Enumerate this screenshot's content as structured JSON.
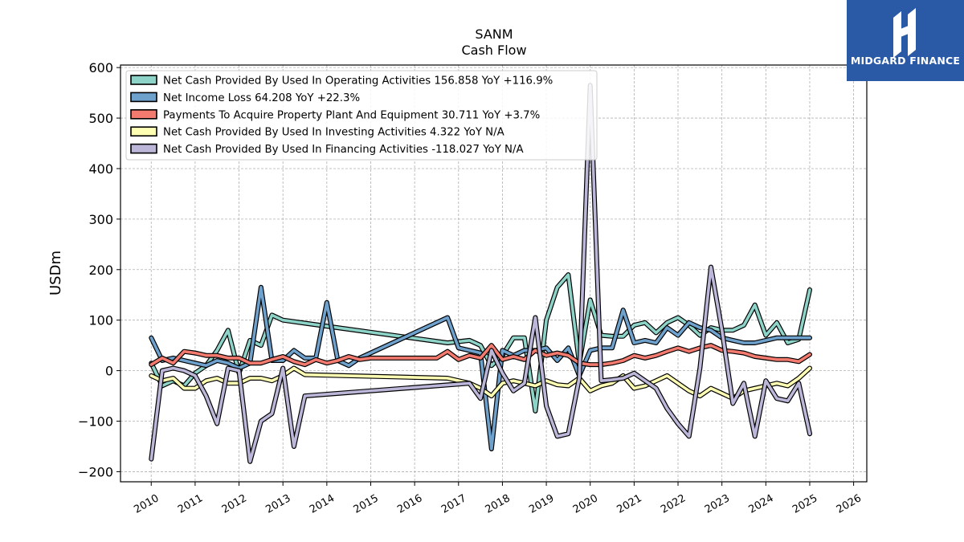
{
  "header": {
    "ticker": "SANM",
    "subtitle": "Cash Flow"
  },
  "branding": {
    "name": "MIDGARD FINANCE",
    "bg_color": "#2a5aa6"
  },
  "chart_data": {
    "type": "line",
    "ylabel": "USDm",
    "xlim": [
      2009.3,
      2026.3
    ],
    "ylim": [
      -220,
      605
    ],
    "yticks": [
      600,
      500,
      400,
      300,
      200,
      100,
      0,
      -100,
      -200
    ],
    "ytick_labels": [
      "600",
      "500",
      "400",
      "300",
      "200",
      "100",
      "0",
      "−100",
      "−200"
    ],
    "xticks": [
      2010,
      2011,
      2012,
      2013,
      2014,
      2015,
      2016,
      2017,
      2018,
      2019,
      2020,
      2021,
      2022,
      2023,
      2024,
      2025,
      2026
    ],
    "grid": true,
    "legend_position": "top-left",
    "series": [
      {
        "name": "Net Cash Provided By Used In Operating Activities",
        "legend": "Net Cash Provided By Used In Operating Activities  156.858 YoY +116.9%",
        "color": "#8dd3c7",
        "points": [
          [
            2010.0,
            15
          ],
          [
            2010.25,
            -30
          ],
          [
            2010.5,
            -20
          ],
          [
            2010.75,
            -30
          ],
          [
            2011.0,
            -5
          ],
          [
            2011.25,
            10
          ],
          [
            2011.5,
            40
          ],
          [
            2011.75,
            80
          ],
          [
            2012.0,
            -5
          ],
          [
            2012.25,
            60
          ],
          [
            2012.5,
            50
          ],
          [
            2012.75,
            110
          ],
          [
            2013.0,
            100
          ],
          [
            2016.75,
            55
          ],
          [
            2017.25,
            60
          ],
          [
            2017.5,
            50
          ],
          [
            2017.75,
            10
          ],
          [
            2018.0,
            30
          ],
          [
            2018.25,
            65
          ],
          [
            2018.5,
            65
          ],
          [
            2018.75,
            -80
          ],
          [
            2019.0,
            100
          ],
          [
            2019.25,
            165
          ],
          [
            2019.5,
            190
          ],
          [
            2019.75,
            15
          ],
          [
            2020.0,
            140
          ],
          [
            2020.25,
            70
          ],
          [
            2020.5,
            68
          ],
          [
            2020.75,
            68
          ],
          [
            2021.0,
            90
          ],
          [
            2021.25,
            95
          ],
          [
            2021.5,
            75
          ],
          [
            2021.75,
            95
          ],
          [
            2022.0,
            105
          ],
          [
            2022.25,
            90
          ],
          [
            2022.5,
            70
          ],
          [
            2022.75,
            85
          ],
          [
            2023.0,
            80
          ],
          [
            2023.25,
            80
          ],
          [
            2023.5,
            90
          ],
          [
            2023.75,
            130
          ],
          [
            2024.0,
            70
          ],
          [
            2024.25,
            95
          ],
          [
            2024.5,
            55
          ],
          [
            2024.75,
            62
          ],
          [
            2025.0,
            160
          ]
        ]
      },
      {
        "name": "Net Income Loss",
        "legend": "Net Income Loss  64.208 YoY +22.3%",
        "color": "#6fa1cd",
        "points": [
          [
            2010.0,
            65
          ],
          [
            2010.25,
            20
          ],
          [
            2010.5,
            25
          ],
          [
            2010.75,
            20
          ],
          [
            2011.0,
            15
          ],
          [
            2011.25,
            10
          ],
          [
            2011.5,
            20
          ],
          [
            2011.75,
            15
          ],
          [
            2012.0,
            5
          ],
          [
            2012.25,
            15
          ],
          [
            2012.5,
            165
          ],
          [
            2012.75,
            20
          ],
          [
            2013.0,
            20
          ],
          [
            2013.25,
            40
          ],
          [
            2013.5,
            25
          ],
          [
            2013.75,
            25
          ],
          [
            2014.0,
            135
          ],
          [
            2014.25,
            20
          ],
          [
            2014.5,
            10
          ],
          [
            2014.75,
            25
          ],
          [
            2016.75,
            105
          ],
          [
            2017.0,
            45
          ],
          [
            2017.5,
            35
          ],
          [
            2017.75,
            -155
          ],
          [
            2018.0,
            40
          ],
          [
            2018.25,
            30
          ],
          [
            2018.5,
            40
          ],
          [
            2018.75,
            40
          ],
          [
            2019.0,
            45
          ],
          [
            2019.25,
            20
          ],
          [
            2019.5,
            45
          ],
          [
            2019.75,
            -10
          ],
          [
            2020.0,
            40
          ],
          [
            2020.25,
            45
          ],
          [
            2020.5,
            45
          ],
          [
            2020.75,
            120
          ],
          [
            2021.0,
            55
          ],
          [
            2021.25,
            60
          ],
          [
            2021.5,
            55
          ],
          [
            2021.75,
            85
          ],
          [
            2022.0,
            70
          ],
          [
            2022.25,
            95
          ],
          [
            2022.5,
            85
          ],
          [
            2022.75,
            80
          ],
          [
            2023.0,
            65
          ],
          [
            2023.25,
            60
          ],
          [
            2023.5,
            55
          ],
          [
            2023.75,
            55
          ],
          [
            2024.0,
            60
          ],
          [
            2024.25,
            65
          ],
          [
            2024.5,
            65
          ],
          [
            2024.75,
            65
          ],
          [
            2025.0,
            65
          ]
        ]
      },
      {
        "name": "Payments To Acquire Property Plant And Equipment",
        "legend": "Payments To Acquire Property Plant And Equipment  30.711 YoY +3.7%",
        "color": "#f27a6e",
        "points": [
          [
            2010.0,
            12
          ],
          [
            2010.25,
            25
          ],
          [
            2010.5,
            15
          ],
          [
            2010.75,
            38
          ],
          [
            2011.0,
            35
          ],
          [
            2011.25,
            30
          ],
          [
            2011.5,
            30
          ],
          [
            2011.75,
            25
          ],
          [
            2012.0,
            25
          ],
          [
            2012.25,
            15
          ],
          [
            2012.5,
            15
          ],
          [
            2012.75,
            22
          ],
          [
            2013.0,
            28
          ],
          [
            2013.25,
            18
          ],
          [
            2013.5,
            12
          ],
          [
            2013.75,
            22
          ],
          [
            2014.0,
            15
          ],
          [
            2014.25,
            20
          ],
          [
            2014.5,
            28
          ],
          [
            2014.75,
            22
          ],
          [
            2015.0,
            25
          ],
          [
            2016.5,
            25
          ],
          [
            2016.75,
            38
          ],
          [
            2017.0,
            22
          ],
          [
            2017.25,
            30
          ],
          [
            2017.5,
            25
          ],
          [
            2017.75,
            50
          ],
          [
            2018.0,
            22
          ],
          [
            2018.25,
            28
          ],
          [
            2018.5,
            22
          ],
          [
            2018.75,
            40
          ],
          [
            2019.0,
            30
          ],
          [
            2019.25,
            35
          ],
          [
            2019.5,
            30
          ],
          [
            2019.75,
            15
          ],
          [
            2020.0,
            12
          ],
          [
            2020.25,
            12
          ],
          [
            2020.5,
            15
          ],
          [
            2020.75,
            20
          ],
          [
            2021.0,
            30
          ],
          [
            2021.25,
            25
          ],
          [
            2021.5,
            30
          ],
          [
            2021.75,
            38
          ],
          [
            2022.0,
            45
          ],
          [
            2022.25,
            38
          ],
          [
            2022.5,
            45
          ],
          [
            2022.75,
            50
          ],
          [
            2023.0,
            40
          ],
          [
            2023.25,
            38
          ],
          [
            2023.5,
            35
          ],
          [
            2023.75,
            28
          ],
          [
            2024.0,
            25
          ],
          [
            2024.25,
            22
          ],
          [
            2024.5,
            22
          ],
          [
            2024.75,
            18
          ],
          [
            2025.0,
            32
          ]
        ]
      },
      {
        "name": "Net Cash Provided By Used In Investing Activities",
        "legend": "Net Cash Provided By Used In Investing Activities  4.322 YoY N/A",
        "color": "#ffffb3",
        "points": [
          [
            2010.0,
            -10
          ],
          [
            2010.25,
            -20
          ],
          [
            2010.5,
            -15
          ],
          [
            2010.75,
            -35
          ],
          [
            2011.0,
            -35
          ],
          [
            2011.25,
            -20
          ],
          [
            2011.5,
            -15
          ],
          [
            2011.75,
            -25
          ],
          [
            2012.0,
            -25
          ],
          [
            2012.25,
            -15
          ],
          [
            2012.5,
            -15
          ],
          [
            2012.75,
            -20
          ],
          [
            2013.0,
            -10
          ],
          [
            2013.25,
            5
          ],
          [
            2013.5,
            -8
          ],
          [
            2016.75,
            -15
          ],
          [
            2017.25,
            -25
          ],
          [
            2017.5,
            -35
          ],
          [
            2017.75,
            -50
          ],
          [
            2018.0,
            -25
          ],
          [
            2018.25,
            -20
          ],
          [
            2018.5,
            -25
          ],
          [
            2018.75,
            -30
          ],
          [
            2019.0,
            -20
          ],
          [
            2019.25,
            -28
          ],
          [
            2019.5,
            -30
          ],
          [
            2019.75,
            -15
          ],
          [
            2020.0,
            -40
          ],
          [
            2020.25,
            -30
          ],
          [
            2020.5,
            -25
          ],
          [
            2020.75,
            -10
          ],
          [
            2021.0,
            -35
          ],
          [
            2021.25,
            -30
          ],
          [
            2021.5,
            -20
          ],
          [
            2021.75,
            -10
          ],
          [
            2022.0,
            -25
          ],
          [
            2022.25,
            -40
          ],
          [
            2022.5,
            -50
          ],
          [
            2022.75,
            -35
          ],
          [
            2023.0,
            -45
          ],
          [
            2023.25,
            -55
          ],
          [
            2023.5,
            -40
          ],
          [
            2023.75,
            -35
          ],
          [
            2024.0,
            -30
          ],
          [
            2024.25,
            -25
          ],
          [
            2024.5,
            -30
          ],
          [
            2024.75,
            -15
          ],
          [
            2025.0,
            5
          ]
        ]
      },
      {
        "name": "Net Cash Provided By Used In Financing Activities",
        "legend": "Net Cash Provided By Used In Financing Activities  -118.027 YoY N/A",
        "color": "#bcb7d8",
        "points": [
          [
            2010.0,
            -175
          ],
          [
            2010.25,
            0
          ],
          [
            2010.5,
            5
          ],
          [
            2010.75,
            0
          ],
          [
            2011.0,
            -10
          ],
          [
            2011.25,
            -50
          ],
          [
            2011.5,
            -105
          ],
          [
            2011.75,
            5
          ],
          [
            2012.0,
            0
          ],
          [
            2012.25,
            -180
          ],
          [
            2012.5,
            -100
          ],
          [
            2012.75,
            -85
          ],
          [
            2013.0,
            5
          ],
          [
            2013.25,
            -150
          ],
          [
            2013.5,
            -50
          ],
          [
            2017.25,
            -25
          ],
          [
            2017.5,
            -55
          ],
          [
            2017.75,
            40
          ],
          [
            2018.0,
            -5
          ],
          [
            2018.25,
            -40
          ],
          [
            2018.5,
            -25
          ],
          [
            2018.75,
            105
          ],
          [
            2019.0,
            -70
          ],
          [
            2019.25,
            -130
          ],
          [
            2019.5,
            -125
          ],
          [
            2019.75,
            -15
          ],
          [
            2020.0,
            565
          ],
          [
            2020.25,
            -20
          ],
          [
            2020.5,
            -18
          ],
          [
            2020.75,
            -15
          ],
          [
            2021.0,
            -5
          ],
          [
            2021.25,
            -20
          ],
          [
            2021.5,
            -35
          ],
          [
            2021.75,
            -75
          ],
          [
            2022.0,
            -105
          ],
          [
            2022.25,
            -130
          ],
          [
            2022.5,
            5
          ],
          [
            2022.75,
            205
          ],
          [
            2023.0,
            80
          ],
          [
            2023.25,
            -65
          ],
          [
            2023.5,
            -25
          ],
          [
            2023.75,
            -130
          ],
          [
            2024.0,
            -20
          ],
          [
            2024.25,
            -55
          ],
          [
            2024.5,
            -60
          ],
          [
            2024.75,
            -25
          ],
          [
            2025.0,
            -125
          ]
        ]
      }
    ]
  }
}
